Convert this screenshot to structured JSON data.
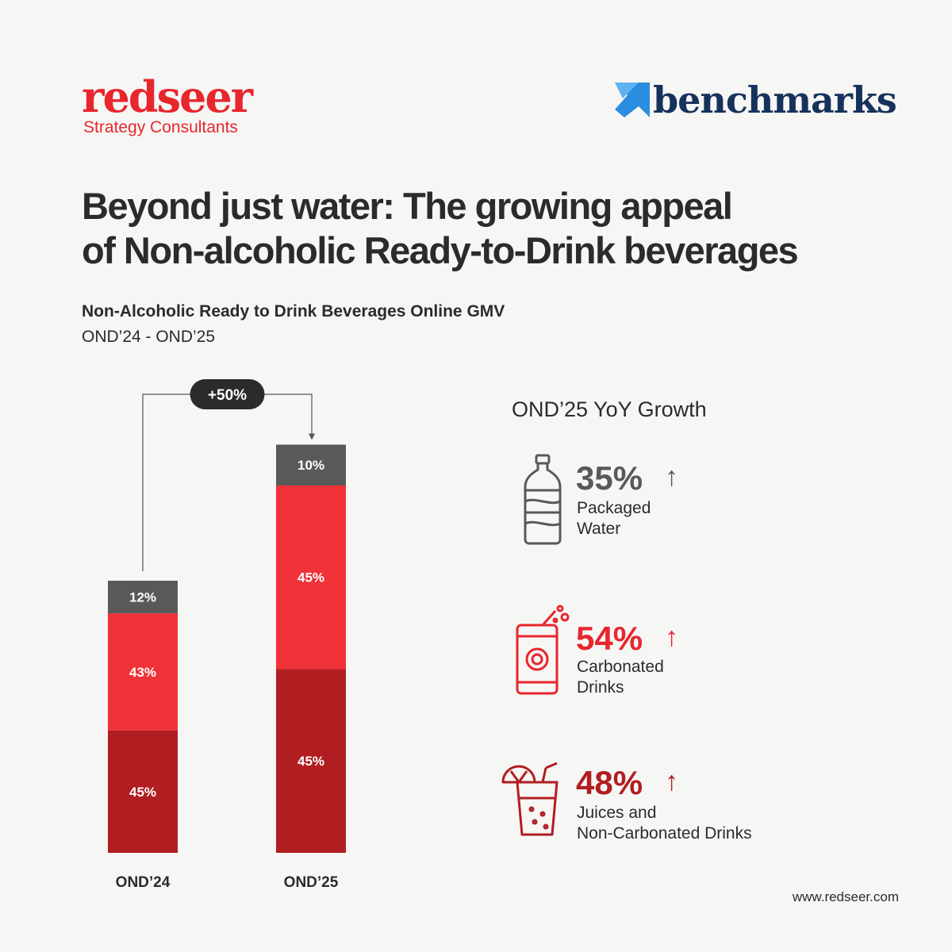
{
  "brand": {
    "redseer_name": "redseer",
    "redseer_tagline": "Strategy Consultants",
    "benchmarks_name": "benchmarks"
  },
  "headline": {
    "line1": "Beyond just water: The growing appeal",
    "line2": "of Non-alcoholic Ready-to-Drink beverages"
  },
  "chart_data": {
    "type": "bar",
    "stacked": true,
    "title": "Non-Alcoholic Ready to Drink Beverages Online GMV",
    "subtitle": "OND’24 - OND’25",
    "categories": [
      "OND’24",
      "OND’25"
    ],
    "relative_totals": [
      100,
      150
    ],
    "series": [
      {
        "values": [
          45,
          45
        ],
        "color": "#b01e22"
      },
      {
        "values": [
          43,
          45
        ],
        "color": "#ef3237"
      },
      {
        "values": [
          12,
          10
        ],
        "color": "#595959"
      }
    ],
    "segment_labels": [
      [
        "45%",
        "43%",
        "12%"
      ],
      [
        "45%",
        "45%",
        "10%"
      ]
    ],
    "growth_annotation": "+50%"
  },
  "growth": {
    "title": "OND’25 YoY Growth",
    "items": [
      {
        "value": "35%",
        "label_line1": "Packaged",
        "label_line2": "Water",
        "color": "#595959",
        "icon": "water-bottle-icon"
      },
      {
        "value": "54%",
        "label_line1": "Carbonated",
        "label_line2": "Drinks",
        "color": "#e8262e",
        "icon": "soda-can-icon"
      },
      {
        "value": "48%",
        "label_line1": "Juices and",
        "label_line2": "Non-Carbonated Drinks",
        "color": "#b01e22",
        "icon": "juice-glass-icon"
      }
    ],
    "arrow": "↑"
  },
  "footer": {
    "url": "www.redseer.com"
  }
}
